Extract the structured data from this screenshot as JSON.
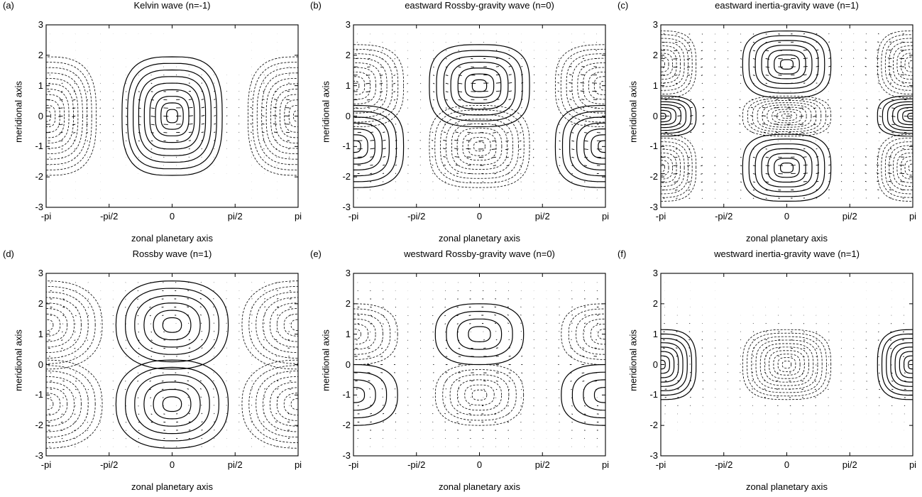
{
  "figure": {
    "xlabel": "zonal planetary axis",
    "ylabel": "meridional axis",
    "x_ticks": [
      "-pi",
      "-pi/2",
      "0",
      "pi/2",
      "pi"
    ],
    "y_ticks": [
      "-3",
      "-2",
      "-1",
      "0",
      "1",
      "2",
      "3"
    ]
  },
  "panels": [
    {
      "label": "(a)",
      "title": "Kelvin wave (n=-1)"
    },
    {
      "label": "(b)",
      "title": "eastward Rossby-gravity wave (n=0)"
    },
    {
      "label": "(c)",
      "title": "eastward inertia-gravity wave (n=1)"
    },
    {
      "label": "(d)",
      "title": "Rossby wave (n=1)"
    },
    {
      "label": "(e)",
      "title": "westward Rossby-gravity wave (n=0)"
    },
    {
      "label": "(f)",
      "title": "westward inertia-gravity wave (n=1)"
    }
  ],
  "chart_data": [
    {
      "type": "contour",
      "title": "Kelvin wave (n=-1)",
      "xlabel": "zonal planetary axis",
      "ylabel": "meridional axis",
      "xlim": [
        "-pi",
        "pi"
      ],
      "ylim": [
        -3,
        3
      ],
      "cells": [
        {
          "x": 0,
          "y": 0,
          "sign": "positive"
        },
        {
          "x": "-pi",
          "y": 0,
          "sign": "negative"
        },
        {
          "x": "pi",
          "y": 0,
          "sign": "negative"
        }
      ]
    },
    {
      "type": "contour",
      "title": "eastward Rossby-gravity wave (n=0)",
      "xlabel": "zonal planetary axis",
      "ylabel": "meridional axis",
      "xlim": [
        "-pi",
        "pi"
      ],
      "ylim": [
        -3,
        3
      ],
      "cells": [
        {
          "x": 0,
          "y": 1,
          "sign": "positive"
        },
        {
          "x": 0,
          "y": -1,
          "sign": "negative"
        },
        {
          "x": "-pi",
          "y": 1,
          "sign": "negative"
        },
        {
          "x": "-pi",
          "y": -1,
          "sign": "positive"
        },
        {
          "x": "pi",
          "y": 1,
          "sign": "negative"
        },
        {
          "x": "pi",
          "y": -1,
          "sign": "positive"
        }
      ]
    },
    {
      "type": "contour",
      "title": "eastward inertia-gravity wave (n=1)",
      "xlabel": "zonal planetary axis",
      "ylabel": "meridional axis",
      "xlim": [
        "-pi",
        "pi"
      ],
      "ylim": [
        -3,
        3
      ],
      "cells": [
        {
          "x": 0,
          "y": 1.7,
          "sign": "positive"
        },
        {
          "x": 0,
          "y": 0,
          "sign": "negative"
        },
        {
          "x": 0,
          "y": -1.7,
          "sign": "positive"
        },
        {
          "x": "-pi",
          "y": 1.7,
          "sign": "negative"
        },
        {
          "x": "-pi",
          "y": 0,
          "sign": "positive"
        },
        {
          "x": "-pi",
          "y": -1.7,
          "sign": "negative"
        },
        {
          "x": "pi",
          "y": 1.7,
          "sign": "negative"
        },
        {
          "x": "pi",
          "y": 0,
          "sign": "positive"
        },
        {
          "x": "pi",
          "y": -1.7,
          "sign": "negative"
        }
      ]
    },
    {
      "type": "contour",
      "title": "Rossby wave (n=1)",
      "xlabel": "zonal planetary axis",
      "ylabel": "meridional axis",
      "xlim": [
        "-pi",
        "pi"
      ],
      "ylim": [
        -3,
        3
      ],
      "cells": [
        {
          "x": 0,
          "y": 1.3,
          "sign": "positive"
        },
        {
          "x": 0,
          "y": -1.3,
          "sign": "positive"
        },
        {
          "x": "-pi",
          "y": 1.3,
          "sign": "negative"
        },
        {
          "x": "-pi",
          "y": -1.3,
          "sign": "negative"
        },
        {
          "x": "pi",
          "y": 1.3,
          "sign": "negative"
        },
        {
          "x": "pi",
          "y": -1.3,
          "sign": "negative"
        }
      ]
    },
    {
      "type": "contour",
      "title": "westward Rossby-gravity wave (n=0)",
      "xlabel": "zonal planetary axis",
      "ylabel": "meridional axis",
      "xlim": [
        "-pi",
        "pi"
      ],
      "ylim": [
        -3,
        3
      ],
      "cells": [
        {
          "x": 0,
          "y": 1,
          "sign": "positive"
        },
        {
          "x": 0,
          "y": -1,
          "sign": "negative"
        },
        {
          "x": "-pi",
          "y": 1,
          "sign": "negative"
        },
        {
          "x": "-pi",
          "y": -1,
          "sign": "positive"
        },
        {
          "x": "pi",
          "y": 1,
          "sign": "negative"
        },
        {
          "x": "pi",
          "y": -1,
          "sign": "positive"
        }
      ]
    },
    {
      "type": "contour",
      "title": "westward inertia-gravity wave (n=1)",
      "xlabel": "zonal planetary axis",
      "ylabel": "meridional axis",
      "xlim": [
        "-pi",
        "pi"
      ],
      "ylim": [
        -3,
        3
      ],
      "cells": [
        {
          "x": 0,
          "y": 0,
          "sign": "negative"
        },
        {
          "x": "-pi",
          "y": 0,
          "sign": "positive"
        },
        {
          "x": "pi",
          "y": 0,
          "sign": "positive"
        }
      ]
    }
  ]
}
